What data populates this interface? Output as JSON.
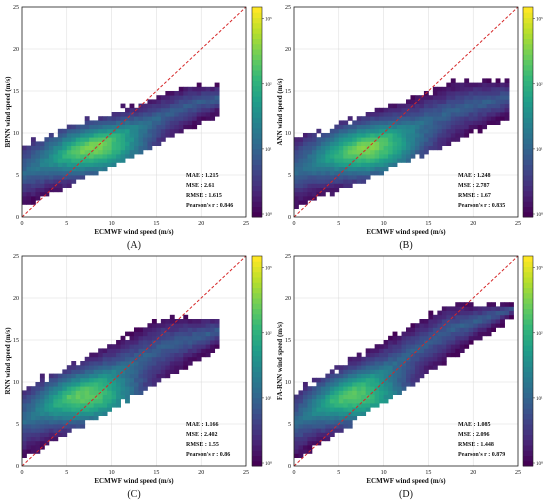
{
  "colors": {
    "diagonal": "#d62728",
    "grid": "#d9d9d9",
    "viridis": [
      "#440154",
      "#482878",
      "#3e4989",
      "#31688e",
      "#26828e",
      "#1f9e89",
      "#35b779",
      "#6ece58",
      "#b5de2b",
      "#fde725"
    ]
  },
  "chart_data": [
    {
      "type": "heatmap",
      "panel_label": "(A)",
      "xlabel": "ECMWF wind speed (m/s)",
      "ylabel": "BPNN wind speed (m/s)",
      "xlim": [
        0,
        25
      ],
      "ylim": [
        0,
        25
      ],
      "xticks": [
        "0",
        "5",
        "10",
        "15",
        "20",
        "25"
      ],
      "yticks": [
        "0",
        "5",
        "10",
        "15",
        "20",
        "25"
      ],
      "colorbar": {
        "scale": "log",
        "ticks": [
          "10⁰",
          "10¹",
          "10²",
          "10³"
        ]
      },
      "diagonal": true,
      "stats": [
        "MAE : 1.215",
        "MSE : 2.61",
        "RMSE : 1.615",
        "Pearson's r : 0.846"
      ],
      "density_shape": {
        "lower_bound_at_x0": 1.5,
        "lower_slope": 0.5,
        "upper_bound_at_x0": 8.5,
        "upper_slope": 0.38,
        "cap": 15.5,
        "x_max": 22,
        "core": [
          8.5,
          7.5
        ]
      }
    },
    {
      "type": "heatmap",
      "panel_label": "(B)",
      "xlabel": "ECMWF wind speed (m/s)",
      "ylabel": "ANN wind speed (m/s)",
      "xlim": [
        0,
        25
      ],
      "ylim": [
        0,
        25
      ],
      "xticks": [
        "0",
        "5",
        "10",
        "15",
        "20",
        "25"
      ],
      "yticks": [
        "0",
        "5",
        "10",
        "15",
        "20",
        "25"
      ],
      "colorbar": {
        "scale": "log",
        "ticks": [
          "10⁰",
          "10¹",
          "10²",
          "10³"
        ]
      },
      "diagonal": true,
      "stats": [
        "MAE : 1.248",
        "MSE : 2.787",
        "RMSE : 1.67",
        "Pearson's r : 0.835"
      ],
      "density_shape": {
        "lower_bound_at_x0": 1.3,
        "lower_slope": 0.45,
        "upper_bound_at_x0": 9.0,
        "upper_slope": 0.38,
        "cap": 16.0,
        "x_max": 24,
        "core": [
          8.5,
          7.5
        ]
      }
    },
    {
      "type": "heatmap",
      "panel_label": "(C)",
      "xlabel": "ECMWF wind speed (m/s)",
      "ylabel": "RNN wind speed (m/s)",
      "xlim": [
        0,
        25
      ],
      "ylim": [
        0,
        25
      ],
      "xticks": [
        "0",
        "5",
        "10",
        "15",
        "20",
        "25"
      ],
      "yticks": [
        "0",
        "5",
        "10",
        "15",
        "20",
        "25"
      ],
      "colorbar": {
        "scale": "log",
        "ticks": [
          "10⁰",
          "10¹",
          "10²",
          "10³"
        ]
      },
      "diagonal": true,
      "stats": [
        "MAE : 1.166",
        "MSE : 2.402",
        "RMSE : 1.55",
        "Pearson's r : 0.86"
      ],
      "density_shape": {
        "lower_bound_at_x0": 1.2,
        "lower_slope": 0.6,
        "upper_bound_at_x0": 9.0,
        "upper_slope": 0.55,
        "cap": 17.5,
        "x_max": 22,
        "core": [
          8.0,
          7.5
        ]
      }
    },
    {
      "type": "heatmap",
      "panel_label": "(D)",
      "xlabel": "ECMWF wind speed (m/s)",
      "ylabel": "FA-RNN wind speed (m/s)",
      "xlim": [
        0,
        25
      ],
      "ylim": [
        0,
        25
      ],
      "xticks": [
        "0",
        "5",
        "10",
        "15",
        "20",
        "25"
      ],
      "yticks": [
        "0",
        "5",
        "10",
        "15",
        "20",
        "25"
      ],
      "colorbar": {
        "scale": "log",
        "ticks": [
          "10⁰",
          "10¹",
          "10²",
          "10³"
        ]
      },
      "diagonal": true,
      "stats": [
        "MAE : 1.085",
        "MSE : 2.096",
        "RMSE : 1.448",
        "Pearson's r : 0.879"
      ],
      "density_shape": {
        "lower_bound_at_x0": 1.0,
        "lower_slope": 0.7,
        "upper_bound_at_x0": 8.5,
        "upper_slope": 0.62,
        "cap": 19.0,
        "x_max": 24.5,
        "core": [
          8.0,
          7.5
        ]
      }
    }
  ]
}
